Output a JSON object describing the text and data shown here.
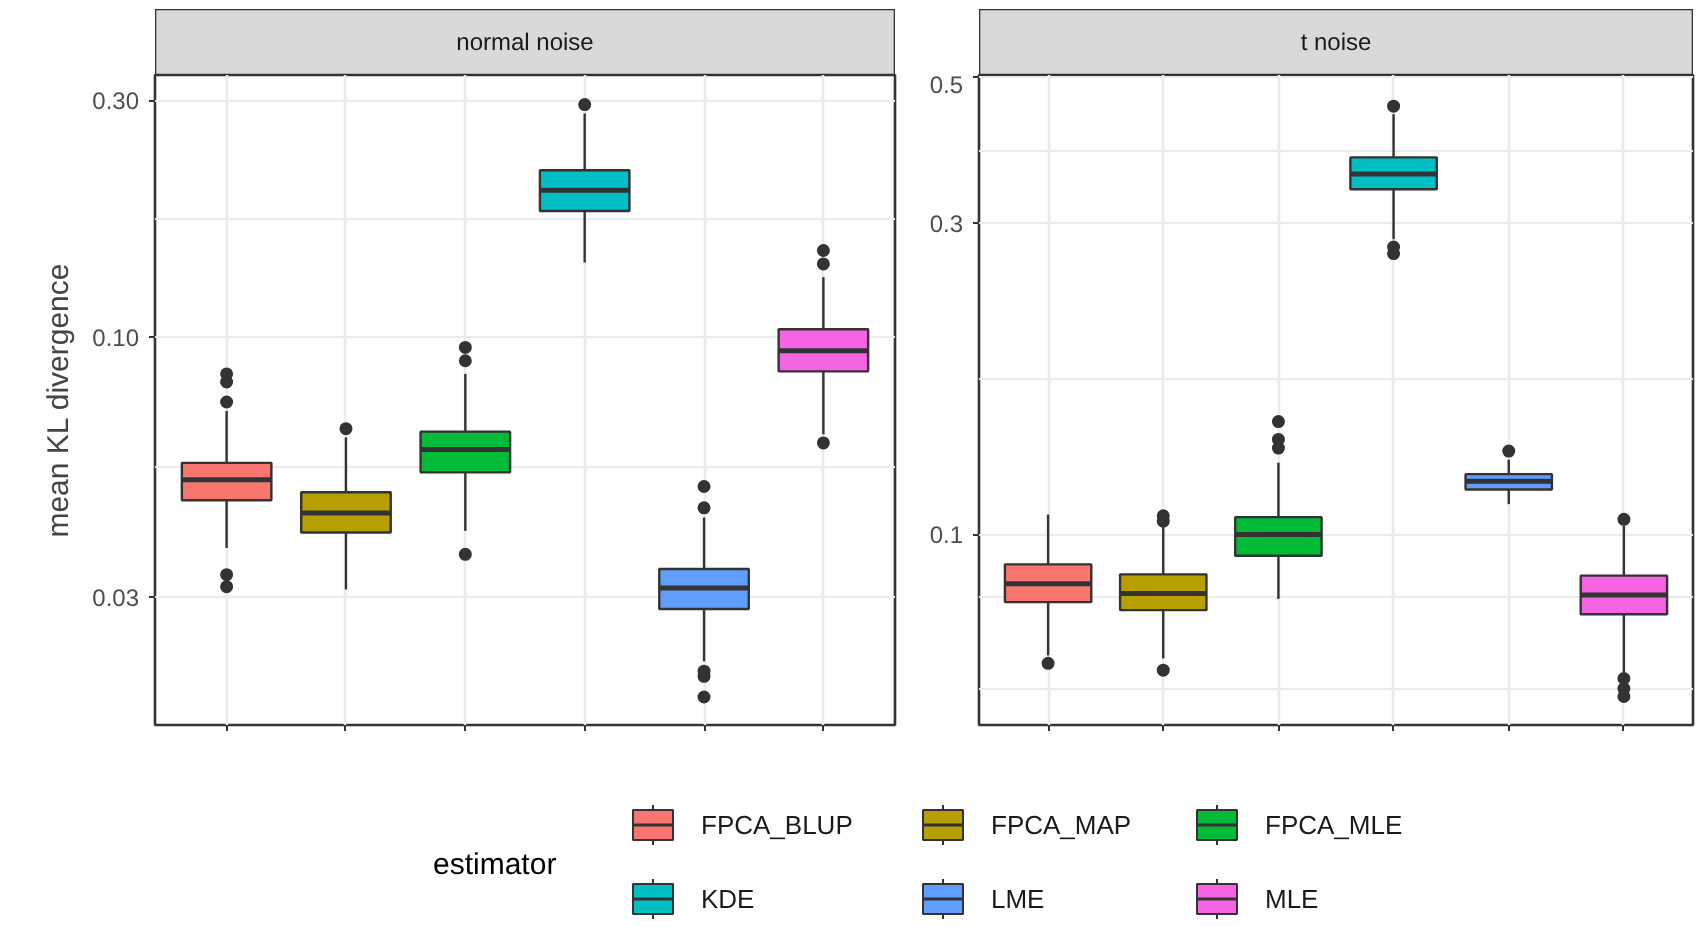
{
  "chart_data": [
    {
      "type": "box",
      "title": "normal noise",
      "ylabel": "mean KL divergence",
      "categories": [
        null,
        null,
        null,
        null,
        null,
        null
      ],
      "log": true,
      "ylim": [
        0.0166,
        0.337
      ],
      "yticks": [
        {
          "value": 0.03,
          "label": "0.03"
        },
        {
          "value": 0.0548,
          "label": null
        },
        {
          "value": 0.1,
          "label": "0.10"
        },
        {
          "value": 0.173,
          "label": null
        },
        {
          "value": 0.3,
          "label": "0.30"
        }
      ],
      "grid": true,
      "legend": "bottom",
      "legend_title": "estimator",
      "tick_labels": "y",
      "series": [
        {
          "name": "FPCA_BLUP",
          "color": "#f8766d",
          "boxes": [
            {
              "low": 0.0377,
              "q1": 0.047,
              "median": 0.0517,
              "q3": 0.0559,
              "high": 0.0711,
              "outliers": [
                0.0844,
                0.0813,
                0.0741,
                0.0333,
                0.0315
              ]
            },
            null,
            null,
            null,
            null,
            null
          ]
        },
        {
          "name": "FPCA_MAP",
          "color": "#b79f00",
          "boxes": [
            null,
            {
              "low": 0.0311,
              "q1": 0.0405,
              "median": 0.0443,
              "q3": 0.0488,
              "high": 0.0629,
              "outliers": [
                0.0655
              ]
            },
            null,
            null,
            null,
            null
          ]
        },
        {
          "name": "FPCA_MLE",
          "color": "#00ba38",
          "boxes": [
            null,
            null,
            {
              "low": 0.0408,
              "q1": 0.0535,
              "median": 0.0595,
              "q3": 0.0646,
              "high": 0.0844,
              "outliers": [
                0.0954,
                0.0897,
                0.0366
              ]
            },
            null,
            null,
            null
          ]
        },
        {
          "name": "KDE",
          "color": "#00bfc4",
          "boxes": [
            null,
            null,
            null,
            {
              "low": 0.1414,
              "q1": 0.1795,
              "median": 0.1975,
              "q3": 0.2168,
              "high": 0.282,
              "outliers": [
                0.2938
              ]
            },
            null,
            null
          ]
        },
        {
          "name": "LME",
          "color": "#619cff",
          "boxes": [
            null,
            null,
            null,
            null,
            {
              "low": 0.0223,
              "q1": 0.0284,
              "median": 0.0313,
              "q3": 0.0342,
              "high": 0.0434,
              "outliers": [
                0.0501,
                0.0454,
                0.0213,
                0.0208,
                0.0189
              ]
            },
            null
          ]
        },
        {
          "name": "MLE",
          "color": "#f564e3",
          "boxes": [
            null,
            null,
            null,
            null,
            null,
            {
              "low": 0.0638,
              "q1": 0.0854,
              "median": 0.094,
              "q3": 0.1038,
              "high": 0.1321,
              "outliers": [
                0.1495,
                0.1405,
                0.0613
              ]
            }
          ]
        }
      ]
    },
    {
      "type": "box",
      "title": "t noise",
      "categories": [
        null,
        null,
        null,
        null,
        null,
        null
      ],
      "log": true,
      "ylim": [
        0.0511,
        0.505
      ],
      "yticks": [
        {
          "value": 0.058,
          "label": null
        },
        {
          "value": 0.08,
          "label": null
        },
        {
          "value": 0.1,
          "label": "0.1"
        },
        {
          "value": 0.173,
          "label": null
        },
        {
          "value": 0.3,
          "label": "0.3"
        },
        {
          "value": 0.387,
          "label": null
        },
        {
          "value": 0.5,
          "label": "0.5"
        }
      ],
      "grid": true,
      "tick_labels": "y",
      "series": [
        {
          "color": "#f8766d",
          "boxes": [
            {
              "low": 0.0653,
              "q1": 0.0788,
              "median": 0.0841,
              "q3": 0.09,
              "high": 0.1073,
              "outliers": [
                0.0635
              ]
            },
            null,
            null,
            null,
            null,
            null
          ]
        },
        {
          "color": "#b79f00",
          "boxes": [
            null,
            {
              "low": 0.0646,
              "q1": 0.0766,
              "median": 0.0812,
              "q3": 0.0869,
              "high": 0.1031,
              "outliers": [
                0.1068,
                0.1048,
                0.062
              ]
            },
            null,
            null,
            null,
            null
          ]
        },
        {
          "color": "#00ba38",
          "boxes": [
            null,
            null,
            {
              "low": 0.0797,
              "q1": 0.0928,
              "median": 0.1,
              "q3": 0.1063,
              "high": 0.1288,
              "outliers": [
                0.1489,
                0.1398,
                0.1356
              ]
            },
            null,
            null,
            null
          ]
        },
        {
          "color": "#00bfc4",
          "boxes": [
            null,
            null,
            null,
            {
              "low": 0.2831,
              "q1": 0.3377,
              "median": 0.3564,
              "q3": 0.3777,
              "high": 0.4399,
              "outliers": [
                0.4524,
                0.2754,
                0.2691
              ]
            },
            null,
            null
          ]
        },
        {
          "color": "#619cff",
          "boxes": [
            null,
            null,
            null,
            null,
            {
              "low": 0.1113,
              "q1": 0.1172,
              "median": 0.1206,
              "q3": 0.1237,
              "high": 0.1302,
              "outliers": [
                0.1342
              ]
            },
            null
          ]
        },
        {
          "color": "#f564e3",
          "boxes": [
            null,
            null,
            null,
            null,
            null,
            {
              "low": 0.0616,
              "q1": 0.0755,
              "median": 0.0808,
              "q3": 0.0865,
              "high": 0.1031,
              "outliers": [
                0.1055,
                0.0602,
                0.0581,
                0.0565
              ]
            }
          ]
        }
      ]
    }
  ]
}
